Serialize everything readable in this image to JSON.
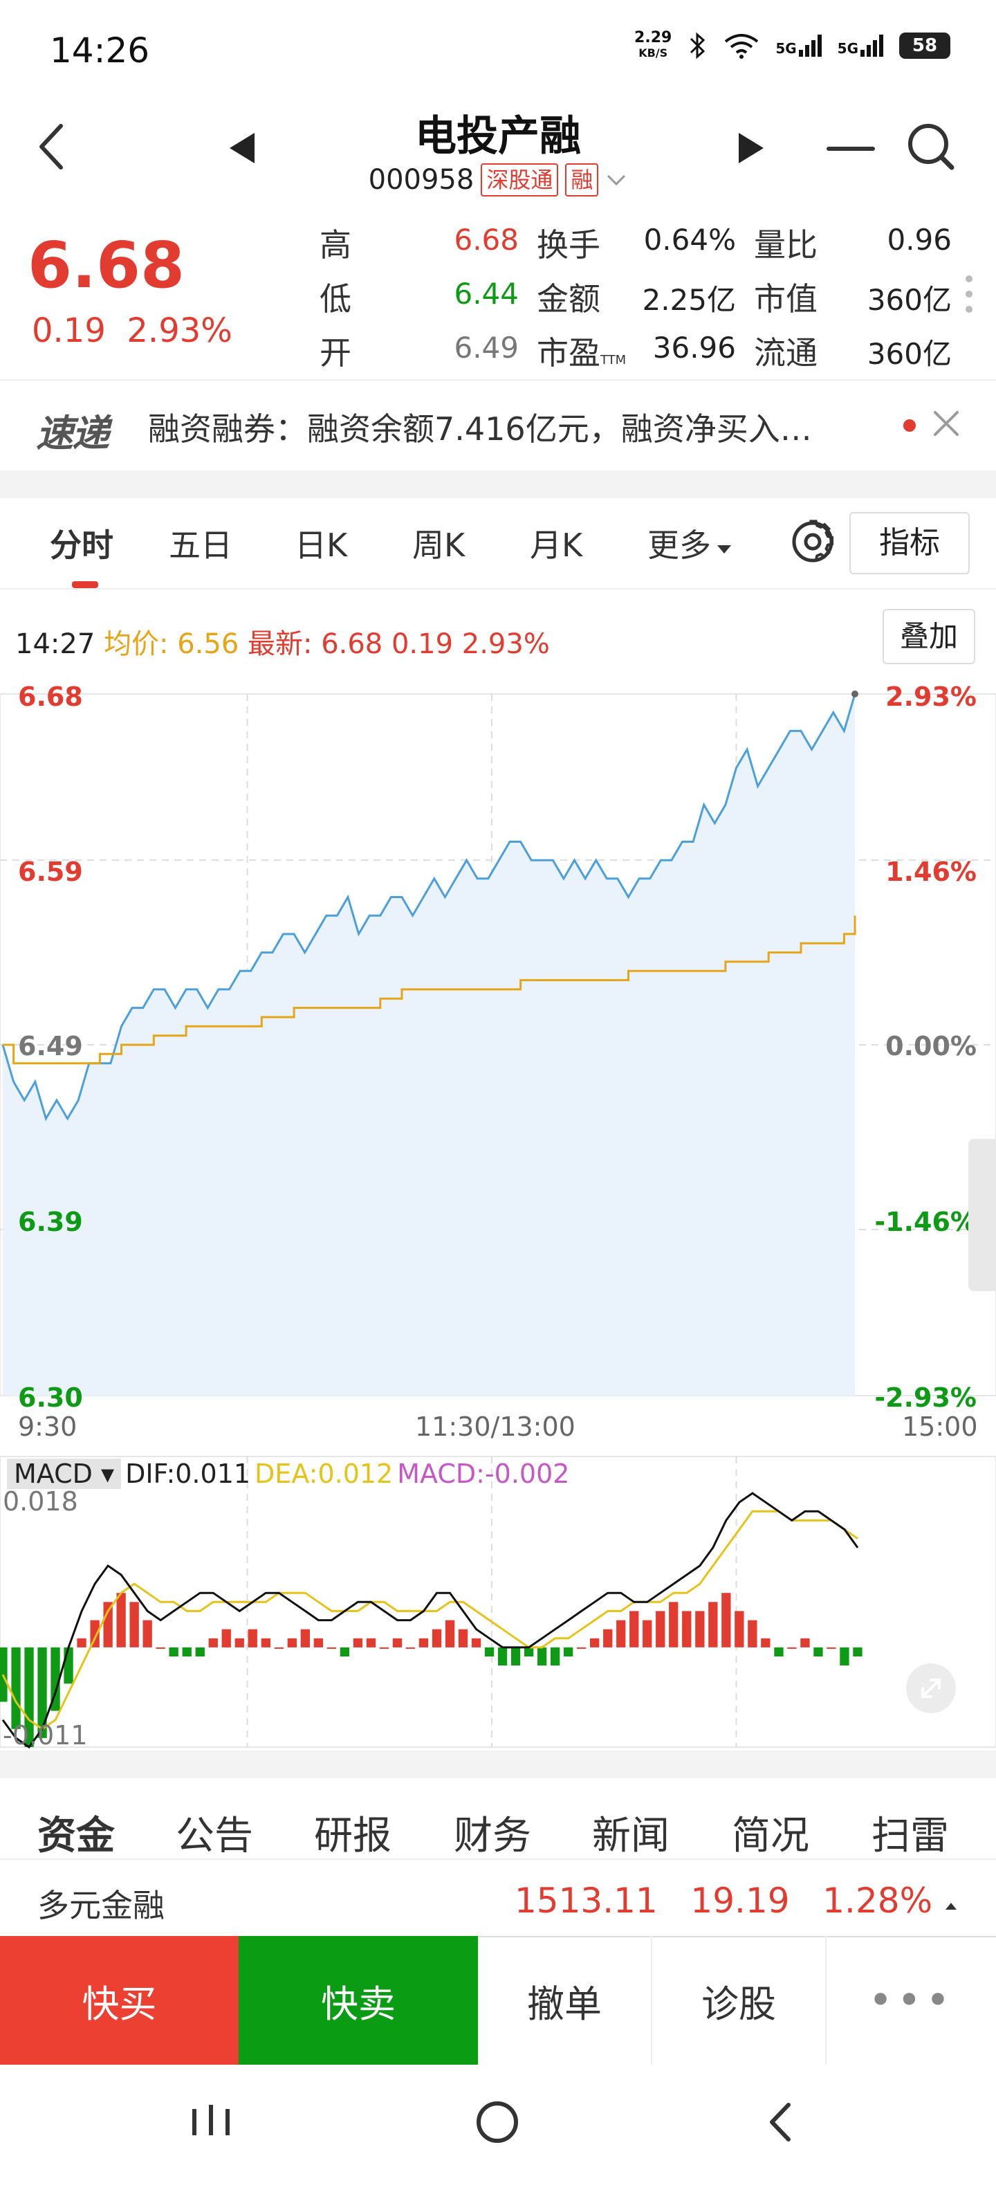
{
  "status_bar": {
    "time": "14:26",
    "net_speed_value": "2.29",
    "net_speed_unit": "KB/S",
    "signal1": "5G",
    "signal2": "5G",
    "battery": "58"
  },
  "header": {
    "stock_name": "电投产融",
    "stock_code": "000958",
    "tag_connect": "深股通",
    "tag_margin": "融"
  },
  "quote": {
    "price": "6.68",
    "change": "0.19",
    "change_pct": "2.93%",
    "high_label": "高",
    "high": "6.68",
    "low_label": "低",
    "low": "6.44",
    "open_label": "开",
    "open": "6.49",
    "turnover_label": "换手",
    "turnover": "0.64%",
    "amount_label": "金额",
    "amount": "2.25亿",
    "pe_label": "市盈",
    "pe_suffix": "TTM",
    "pe": "36.96",
    "vol_ratio_label": "量比",
    "vol_ratio": "0.96",
    "mkt_cap_label": "市值",
    "mkt_cap": "360亿",
    "float_cap_label": "流通",
    "float_cap": "360亿"
  },
  "news": {
    "logo": "速递",
    "text": "融资融券：融资余额7.416亿元，融资净买入…"
  },
  "tabs": {
    "items": [
      "分时",
      "五日",
      "日K",
      "周K",
      "月K",
      "更多"
    ],
    "active": "分时",
    "indicator_button": "指标"
  },
  "chart_info": {
    "time": "14:27",
    "avg_label": "均价:",
    "avg": "6.56",
    "latest_label": "最新:",
    "latest": "6.68",
    "change": "0.19",
    "change_pct": "2.93%",
    "overlay_button": "叠加"
  },
  "colors": {
    "up": "#e23b30",
    "down": "#0f9a16",
    "price_line": "#4a9fdc",
    "avg_line": "#e6a519",
    "dif_line": "#111111",
    "dea_line": "#e6c319",
    "macd_label": "#c657c6"
  },
  "chart_data": [
    {
      "type": "line",
      "title": "",
      "y_left_ticks": [
        "6.68",
        "6.59",
        "6.49",
        "6.39",
        "6.30"
      ],
      "y_right_ticks": [
        "2.93%",
        "1.46%",
        "0.00%",
        "-1.46%",
        "-2.93%"
      ],
      "x_ticks": [
        "9:30",
        "11:30/13:00",
        "15:00"
      ],
      "ylim": [
        6.3,
        6.68
      ],
      "grid": true,
      "series": [
        {
          "key": "price",
          "values": [
            6.49,
            6.47,
            6.46,
            6.47,
            6.45,
            6.46,
            6.45,
            6.46,
            6.48,
            6.48,
            6.48,
            6.5,
            6.51,
            6.51,
            6.52,
            6.52,
            6.51,
            6.52,
            6.52,
            6.51,
            6.52,
            6.52,
            6.53,
            6.53,
            6.54,
            6.54,
            6.55,
            6.55,
            6.54,
            6.55,
            6.56,
            6.56,
            6.57,
            6.55,
            6.56,
            6.56,
            6.57,
            6.57,
            6.56,
            6.57,
            6.58,
            6.57,
            6.58,
            6.59,
            6.58,
            6.58,
            6.59,
            6.6,
            6.6,
            6.59,
            6.59,
            6.59,
            6.58,
            6.59,
            6.58,
            6.59,
            6.58,
            6.58,
            6.57,
            6.58,
            6.58,
            6.59,
            6.59,
            6.6,
            6.6,
            6.62,
            6.61,
            6.62,
            6.64,
            6.65,
            6.63,
            6.64,
            6.65,
            6.66,
            6.66,
            6.65,
            6.66,
            6.67,
            6.66,
            6.68
          ]
        },
        {
          "key": "average",
          "values": [
            6.49,
            6.48,
            6.48,
            6.48,
            6.48,
            6.48,
            6.48,
            6.48,
            6.48,
            6.485,
            6.485,
            6.49,
            6.49,
            6.49,
            6.495,
            6.495,
            6.495,
            6.5,
            6.5,
            6.5,
            6.5,
            6.5,
            6.5,
            6.5,
            6.505,
            6.505,
            6.505,
            6.51,
            6.51,
            6.51,
            6.51,
            6.51,
            6.51,
            6.51,
            6.51,
            6.515,
            6.515,
            6.52,
            6.52,
            6.52,
            6.52,
            6.52,
            6.52,
            6.52,
            6.52,
            6.52,
            6.52,
            6.52,
            6.525,
            6.525,
            6.525,
            6.525,
            6.525,
            6.525,
            6.525,
            6.525,
            6.525,
            6.525,
            6.53,
            6.53,
            6.53,
            6.53,
            6.53,
            6.53,
            6.53,
            6.53,
            6.53,
            6.535,
            6.535,
            6.535,
            6.535,
            6.54,
            6.54,
            6.54,
            6.545,
            6.545,
            6.545,
            6.545,
            6.55,
            6.56
          ]
        }
      ]
    },
    {
      "type": "bar",
      "title": "MACD",
      "selector": "MACD",
      "labels": {
        "dif": "DIF:0.011",
        "dea": "DEA:0.012",
        "macd": "MACD:-0.002"
      },
      "y_ticks": [
        "0.018",
        "-0.011"
      ],
      "ylim": [
        -0.011,
        0.018
      ],
      "histogram": [
        -0.006,
        -0.009,
        -0.011,
        -0.01,
        -0.007,
        -0.004,
        0.001,
        0.003,
        0.005,
        0.006,
        0.005,
        0.003,
        0.0,
        -0.001,
        -0.001,
        -0.001,
        0.001,
        0.002,
        0.001,
        0.002,
        0.001,
        0.0,
        0.001,
        0.002,
        0.001,
        0.0,
        -0.001,
        0.001,
        0.001,
        0.0,
        0.001,
        0.0,
        0.001,
        0.002,
        0.003,
        0.002,
        0.001,
        -0.001,
        -0.002,
        -0.002,
        -0.001,
        -0.002,
        -0.002,
        -0.001,
        0.0,
        0.001,
        0.002,
        0.003,
        0.004,
        0.003,
        0.004,
        0.005,
        0.004,
        0.004,
        0.005,
        0.006,
        0.004,
        0.003,
        0.001,
        -0.001,
        0.0,
        0.001,
        -0.001,
        0.0,
        -0.002,
        -0.001
      ],
      "dif": [
        -0.008,
        -0.01,
        -0.011,
        -0.009,
        -0.005,
        0.0,
        0.004,
        0.007,
        0.009,
        0.008,
        0.006,
        0.004,
        0.003,
        0.004,
        0.005,
        0.006,
        0.006,
        0.005,
        0.004,
        0.005,
        0.006,
        0.006,
        0.005,
        0.004,
        0.003,
        0.003,
        0.004,
        0.005,
        0.005,
        0.004,
        0.003,
        0.003,
        0.004,
        0.006,
        0.006,
        0.004,
        0.002,
        0.001,
        0.0,
        0.0,
        0.0,
        0.001,
        0.002,
        0.003,
        0.004,
        0.005,
        0.006,
        0.006,
        0.005,
        0.005,
        0.006,
        0.007,
        0.008,
        0.009,
        0.011,
        0.014,
        0.016,
        0.017,
        0.016,
        0.015,
        0.014,
        0.015,
        0.015,
        0.014,
        0.013,
        0.011
      ],
      "dea": [
        -0.003,
        -0.006,
        -0.008,
        -0.009,
        -0.008,
        -0.005,
        -0.002,
        0.001,
        0.004,
        0.006,
        0.007,
        0.006,
        0.005,
        0.005,
        0.004,
        0.004,
        0.005,
        0.005,
        0.005,
        0.005,
        0.005,
        0.006,
        0.006,
        0.006,
        0.005,
        0.004,
        0.004,
        0.004,
        0.005,
        0.005,
        0.004,
        0.004,
        0.004,
        0.004,
        0.005,
        0.005,
        0.004,
        0.003,
        0.002,
        0.001,
        0.0,
        0.0,
        0.001,
        0.001,
        0.002,
        0.003,
        0.004,
        0.004,
        0.005,
        0.005,
        0.005,
        0.006,
        0.006,
        0.007,
        0.009,
        0.011,
        0.013,
        0.015,
        0.015,
        0.015,
        0.014,
        0.014,
        0.014,
        0.014,
        0.013,
        0.012
      ]
    }
  ],
  "bottom_tabs": {
    "items": [
      "资金",
      "公告",
      "研报",
      "财务",
      "新闻",
      "简况",
      "扫雷"
    ],
    "active": "资金"
  },
  "sector": {
    "name": "多元金融",
    "index": "1513.11",
    "change": "19.19",
    "change_pct": "1.28%"
  },
  "actions": {
    "buy": "快买",
    "sell": "快卖",
    "cancel": "撤单",
    "diagnose": "诊股",
    "more": "•••"
  }
}
